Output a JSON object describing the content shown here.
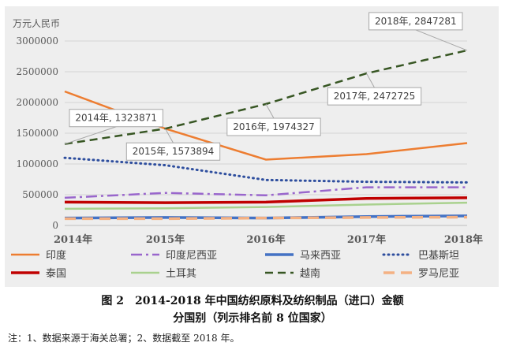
{
  "chart_data": {
    "type": "line",
    "unit_label": "万元人民币",
    "x": [
      "2014年",
      "2015年",
      "2016年",
      "2017年",
      "2018年"
    ],
    "ylim": [
      0,
      3000000
    ],
    "y_ticks": [
      "0",
      "500000",
      "1000000",
      "1500000",
      "2000000",
      "2500000",
      "3000000"
    ],
    "grid": true,
    "legend_placement": "bottom",
    "series": [
      {
        "name": "印度",
        "color": "#ED7D31",
        "style": "solid",
        "values": [
          2180000,
          1573894,
          1070000,
          1160000,
          1340000
        ]
      },
      {
        "name": "印度尼西亚",
        "color": "#9966CC",
        "style": "dashdot",
        "values": [
          450000,
          530000,
          490000,
          620000,
          620000
        ]
      },
      {
        "name": "马来西亚",
        "color": "#4472C4",
        "style": "solid-thick",
        "values": [
          120000,
          130000,
          120000,
          145000,
          155000
        ]
      },
      {
        "name": "巴基斯坦",
        "color": "#2E4E9E",
        "style": "dotted",
        "values": [
          1100000,
          980000,
          740000,
          710000,
          700000
        ]
      },
      {
        "name": "泰国",
        "color": "#C00000",
        "style": "solid-thick",
        "values": [
          380000,
          370000,
          380000,
          440000,
          450000
        ]
      },
      {
        "name": "土耳其",
        "color": "#A9D18E",
        "style": "solid",
        "values": [
          270000,
          280000,
          300000,
          340000,
          370000
        ]
      },
      {
        "name": "越南",
        "color": "#375623",
        "style": "dashed",
        "values": [
          1323871,
          1573894,
          1974327,
          2472725,
          2847281
        ]
      },
      {
        "name": "罗马尼亚",
        "color": "#F4B183",
        "style": "dashed-thick",
        "values": [
          110000,
          110000,
          120000,
          130000,
          135000
        ]
      }
    ],
    "callouts": [
      {
        "series": "越南",
        "point": 0,
        "text": "2014年, 1323871",
        "box": "above"
      },
      {
        "series": "越南",
        "point": 1,
        "text": "2015年, 1573894",
        "box": "below"
      },
      {
        "series": "越南",
        "point": 2,
        "text": "2016年, 1974327",
        "box": "below"
      },
      {
        "series": "越南",
        "point": 3,
        "text": "2017年, 2472725",
        "box": "below"
      },
      {
        "series": "越南",
        "point": 4,
        "text": "2018年, 2847281",
        "box": "above"
      }
    ]
  },
  "caption": {
    "line1": "图 2　2014-2018 年中国纺织原料及纺织制品（进口）金额",
    "line2": "分国别（列示排名前 8 位国家）"
  },
  "note": "注：1、数据来源于海关总署；2、数据截至 2018 年。"
}
